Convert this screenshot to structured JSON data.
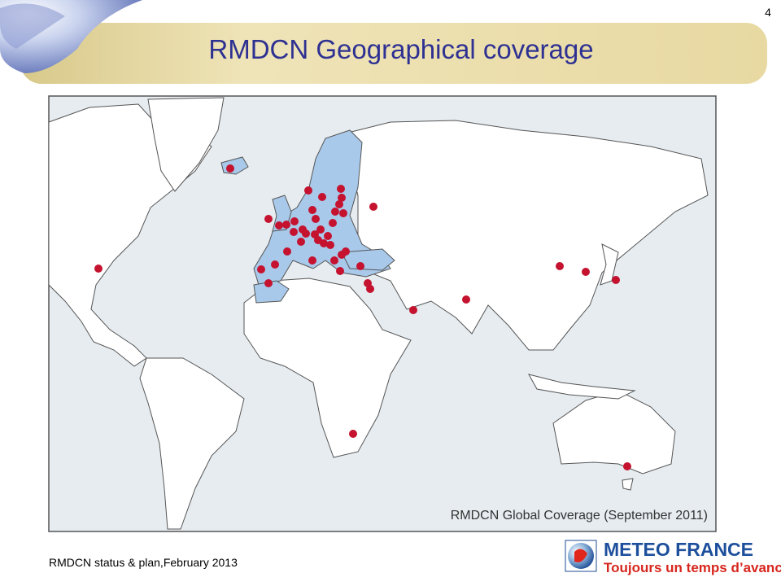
{
  "header": {
    "title": "RMDCN Geographical coverage",
    "page_number": "4"
  },
  "map": {
    "caption": "RMDCN Global Coverage (September 2011)"
  },
  "footer": {
    "text": "RMDCN status & plan,February 2013"
  },
  "logo": {
    "name": "METEO FRANCE",
    "tagline": "Toujours un temps d’avance"
  }
}
